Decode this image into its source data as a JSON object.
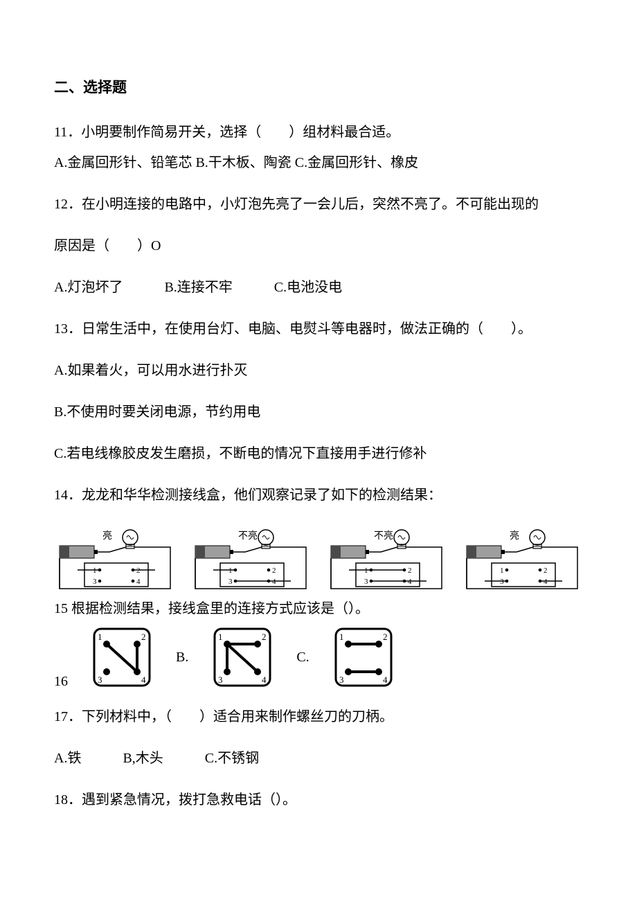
{
  "section_heading": "二、选择题",
  "q11": {
    "stem": "11．小明要制作简易开关，选择（　　）组材料最合适。",
    "opts": "A.金属回形针、铅笔芯 B.干木板、陶瓷 C.金属回形针、橡皮"
  },
  "q12": {
    "stem1": "12．在小明连接的电路中，小灯泡先亮了一会儿后，突然不亮了。不可能出现的",
    "stem2": "原因是（　　）O",
    "optA": "A.灯泡坏了",
    "optB": "B.连接不牢",
    "optC": "C.电池没电"
  },
  "q13": {
    "stem": "13．日常生活中，在使用台灯、电脑、电熨斗等电器时，做法正确的（　　）。",
    "optA": "A.如果着火，可以用水进行扑灭",
    "optB": "B.不使用时要关闭电源，节约用电",
    "optC": "C.若电线橡胶皮发生磨损，不断电的情况下直接用手进行修补"
  },
  "q14": {
    "stem": "14．龙龙和华华检测接线盒，他们观察记录了如下的检测结果：",
    "circuits": [
      {
        "lamp": "亮",
        "probeA": "1",
        "probeB": "2"
      },
      {
        "lamp": "不亮",
        "probeA": "1",
        "probeB": "3"
      },
      {
        "lamp": "不亮",
        "probeA": "2",
        "probeB": "3"
      },
      {
        "lamp": "亮",
        "probeA": "3",
        "probeB": "4"
      }
    ]
  },
  "q15": {
    "stem": "15  根据检测结果，接线盒里的连接方式应该是（）。",
    "num16": "16",
    "labelB": "B.",
    "labelC": "C.",
    "boxA": {
      "links": [
        [
          1,
          4
        ],
        [
          2,
          4
        ]
      ]
    },
    "boxB": {
      "links": [
        [
          1,
          3
        ],
        [
          1,
          4
        ],
        [
          1,
          2
        ]
      ]
    },
    "boxC": {
      "links": [
        [
          1,
          2
        ],
        [
          3,
          4
        ]
      ]
    }
  },
  "q17": {
    "stem": "17．下列材料中，（　　）适合用来制作螺丝刀的刀柄。",
    "optA": "A.铁",
    "optB": "B,木头",
    "optC": "C.不锈钢"
  },
  "q18": {
    "stem": "18．遇到紧急情况，拨打急救电话（）。"
  },
  "style": {
    "text_color": "#000000",
    "background_color": "#ffffff",
    "font_size_pt": 15,
    "heading_font_size_pt": 16,
    "line_color": "#000000",
    "fill_gray": "#9e9e9e",
    "fill_dark": "#4a4a4a"
  }
}
